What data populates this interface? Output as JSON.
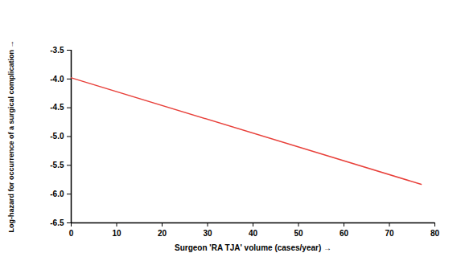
{
  "chart_data": {
    "type": "line",
    "x_label": "Surgeon 'RA TJA' volume (cases/year)",
    "y_label": "Log-hazard for occurrence of a surgical complication",
    "x": [
      0,
      77
    ],
    "values": [
      -3.98,
      -5.83
    ],
    "color": "#e8403a",
    "xlim": [
      0,
      80
    ],
    "xticks": [
      0,
      10,
      20,
      30,
      40,
      50,
      60,
      70,
      80
    ],
    "ylim": [
      -6.5,
      -3.5
    ],
    "yticks": [
      {
        "value": -6.5,
        "label": "-6.5"
      },
      {
        "value": -6,
        "label": "-6.0"
      },
      {
        "value": -5.5,
        "label": "-5.5"
      },
      {
        "value": -5,
        "label": "-5.0"
      },
      {
        "value": -4.5,
        "label": "-4.5"
      },
      {
        "value": -4,
        "label": "-4.0"
      },
      -3.5
    ],
    "grid": false
  }
}
